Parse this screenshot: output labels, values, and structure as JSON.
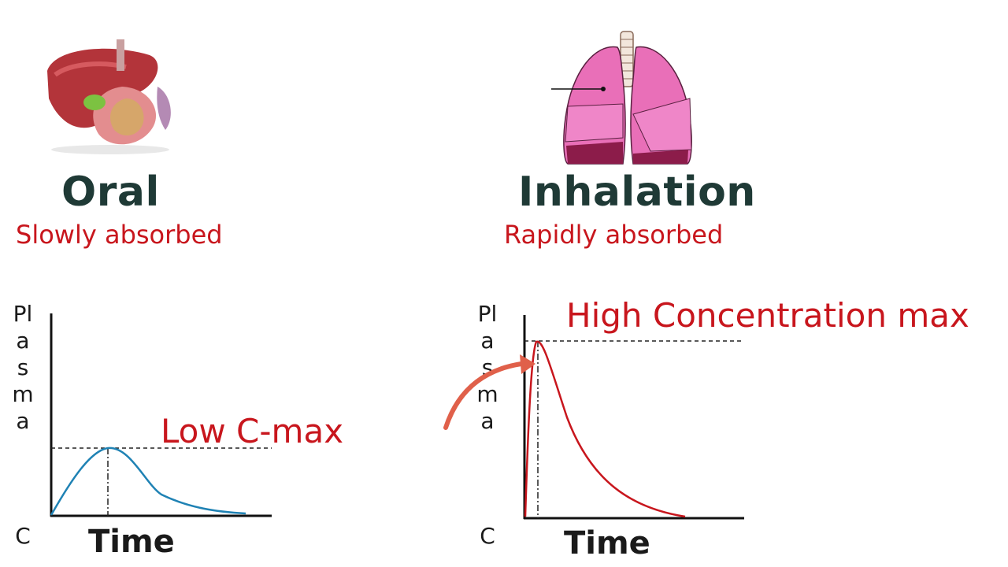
{
  "left": {
    "title": "Oral",
    "subtitle": "Slowly absorbed",
    "illustration_icon": "stomach-liver-icon",
    "graph": {
      "ylabel": "Plasma",
      "ylabel_c": "C",
      "xlabel": "Time",
      "annotation": "Low C-max",
      "curve_color": "#1f82b4"
    }
  },
  "right": {
    "title": "Inhalation",
    "subtitle": "Rapidly absorbed",
    "illustration_icon": "lungs-icon",
    "graph": {
      "ylabel": "Plasma",
      "ylabel_c": "C",
      "xlabel": "Time",
      "annotation": "High Concentration max",
      "curve_color": "#c8161d",
      "arrow_color": "#e0604a"
    }
  },
  "colors": {
    "title": "#1f3a36",
    "accent": "#c8161d"
  }
}
